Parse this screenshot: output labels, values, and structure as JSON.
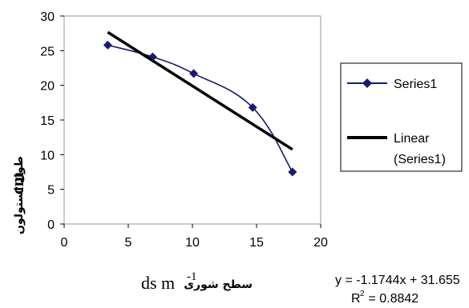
{
  "chart_data": {
    "type": "scatter",
    "series": [
      {
        "name": "Series1",
        "x": [
          3.4,
          6.9,
          10.1,
          14.7,
          17.8
        ],
        "y": [
          25.8,
          24.1,
          21.7,
          16.8,
          7.5
        ],
        "color": "#1a1a6e",
        "marker": "diamond",
        "line": "smoothed"
      }
    ],
    "trendline": {
      "name": "Linear\n(Series1)",
      "name_lines": [
        "Linear",
        "(Series1)"
      ],
      "slope": -1.1744,
      "intercept": 31.655,
      "x_range": [
        3.4,
        17.8
      ],
      "color": "#000000"
    },
    "xlim": [
      0,
      20
    ],
    "ylim": [
      0,
      30
    ],
    "xticks": [
      0,
      5,
      10,
      15,
      20
    ],
    "yticks": [
      0,
      5,
      10,
      15,
      20,
      25,
      30
    ],
    "xticklabels": [
      "0",
      "5",
      "10",
      "15",
      "20"
    ],
    "yticklabels": [
      "0",
      "5",
      "10",
      "15",
      "20",
      "25",
      "30"
    ],
    "xlabel": {
      "unit": "ds m",
      "superscript": "-1",
      "text": "سطح شوری"
    },
    "ylabel": {
      "text": "طول استولون",
      "unit": "cm"
    },
    "grid": false,
    "legend_position": "right",
    "equation": "y = -1.1744x + 31.655",
    "r_squared": {
      "label": "R",
      "exponent": "2",
      "value": " = 0.8842"
    }
  }
}
